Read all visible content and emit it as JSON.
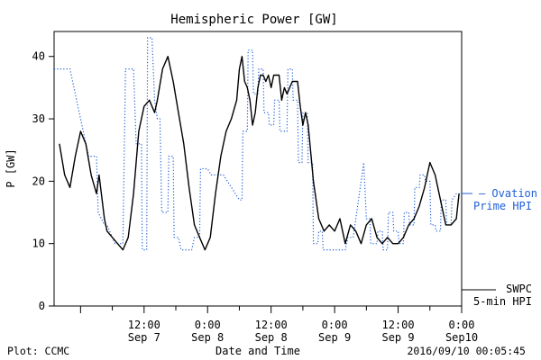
{
  "chart_data": {
    "type": "line",
    "title": "Hemispheric Power [GW]",
    "xlabel": "Date and Time",
    "ylabel": "P [GW]",
    "ylim": [
      0,
      44
    ],
    "xlim": [
      "2016-09-06 19:00",
      "2016-09-10 00:00"
    ],
    "yticks": [
      0,
      10,
      20,
      30,
      40
    ],
    "xticks": [
      {
        "x": "2016-09-07 12:00",
        "line1": "12:00",
        "line2": "Sep 7"
      },
      {
        "x": "2016-09-08 00:00",
        "line1": "0:00",
        "line2": "Sep 8"
      },
      {
        "x": "2016-09-08 12:00",
        "line1": "12:00",
        "line2": "Sep 8"
      },
      {
        "x": "2016-09-09 00:00",
        "line1": "0:00",
        "line2": "Sep 9"
      },
      {
        "x": "2016-09-09 12:00",
        "line1": "12:00",
        "line2": "Sep 9"
      },
      {
        "x": "2016-09-10 00:00",
        "line1": "0:00",
        "line2": "Sep10"
      }
    ],
    "grid": false,
    "series": [
      {
        "name": "Ovation Prime HPI",
        "legend_lines": [
          "— Ovation",
          "Prime HPI"
        ],
        "color": "#1f5fd6",
        "style": "dotted",
        "points": [
          [
            "2016-09-06 19:00",
            38
          ],
          [
            "2016-09-06 22:00",
            38
          ],
          [
            "2016-09-07 01:30",
            24
          ],
          [
            "2016-09-07 03:00",
            24
          ],
          [
            "2016-09-07 03:20",
            15
          ],
          [
            "2016-09-07 04:30",
            13
          ],
          [
            "2016-09-07 05:00",
            13
          ],
          [
            "2016-09-07 06:30",
            10
          ],
          [
            "2016-09-07 08:00",
            10
          ],
          [
            "2016-09-07 08:30",
            38
          ],
          [
            "2016-09-07 10:00",
            38
          ],
          [
            "2016-09-07 10:30",
            26
          ],
          [
            "2016-09-07 11:30",
            26
          ],
          [
            "2016-09-07 11:40",
            9
          ],
          [
            "2016-09-07 12:30",
            9
          ],
          [
            "2016-09-07 12:40",
            43
          ],
          [
            "2016-09-07 13:30",
            43
          ],
          [
            "2016-09-07 14:00",
            33
          ],
          [
            "2016-09-07 14:30",
            30
          ],
          [
            "2016-09-07 15:00",
            30
          ],
          [
            "2016-09-07 15:20",
            15
          ],
          [
            "2016-09-07 16:30",
            15
          ],
          [
            "2016-09-07 16:40",
            24
          ],
          [
            "2016-09-07 17:30",
            24
          ],
          [
            "2016-09-07 17:40",
            11
          ],
          [
            "2016-09-07 18:30",
            11
          ],
          [
            "2016-09-07 19:00",
            9
          ],
          [
            "2016-09-07 21:00",
            9
          ],
          [
            "2016-09-07 21:30",
            11
          ],
          [
            "2016-09-07 22:30",
            11
          ],
          [
            "2016-09-07 22:40",
            22
          ],
          [
            "2016-09-08 00:00",
            22
          ],
          [
            "2016-09-08 00:40",
            21
          ],
          [
            "2016-09-08 03:00",
            21
          ],
          [
            "2016-09-08 06:00",
            17
          ],
          [
            "2016-09-08 06:30",
            17
          ],
          [
            "2016-09-08 06:40",
            28
          ],
          [
            "2016-09-08 07:30",
            28
          ],
          [
            "2016-09-08 07:40",
            41
          ],
          [
            "2016-09-08 08:30",
            41
          ],
          [
            "2016-09-08 08:40",
            34
          ],
          [
            "2016-09-08 09:30",
            34
          ],
          [
            "2016-09-08 09:40",
            38
          ],
          [
            "2016-09-08 10:30",
            38
          ],
          [
            "2016-09-08 10:40",
            31
          ],
          [
            "2016-09-08 11:30",
            31
          ],
          [
            "2016-09-08 11:40",
            29
          ],
          [
            "2016-09-08 12:30",
            29
          ],
          [
            "2016-09-08 12:40",
            33
          ],
          [
            "2016-09-08 13:30",
            33
          ],
          [
            "2016-09-08 13:40",
            28
          ],
          [
            "2016-09-08 15:00",
            28
          ],
          [
            "2016-09-08 15:10",
            38
          ],
          [
            "2016-09-08 16:00",
            38
          ],
          [
            "2016-09-08 16:10",
            33
          ],
          [
            "2016-09-08 17:00",
            33
          ],
          [
            "2016-09-08 17:10",
            23
          ],
          [
            "2016-09-08 17:50",
            23
          ],
          [
            "2016-09-08 18:00",
            31
          ],
          [
            "2016-09-08 18:50",
            31
          ],
          [
            "2016-09-08 19:00",
            23
          ],
          [
            "2016-09-08 19:50",
            23
          ],
          [
            "2016-09-08 20:00",
            10
          ],
          [
            "2016-09-08 20:50",
            10
          ],
          [
            "2016-09-08 21:00",
            12
          ],
          [
            "2016-09-08 21:40",
            12
          ],
          [
            "2016-09-08 21:50",
            9
          ],
          [
            "2016-09-09 02:00",
            9
          ],
          [
            "2016-09-09 02:30",
            11
          ],
          [
            "2016-09-09 03:30",
            11
          ],
          [
            "2016-09-09 05:00",
            20
          ],
          [
            "2016-09-09 05:30",
            23
          ],
          [
            "2016-09-09 06:00",
            14
          ],
          [
            "2016-09-09 06:40",
            14
          ],
          [
            "2016-09-09 06:50",
            10
          ],
          [
            "2016-09-09 08:00",
            10
          ],
          [
            "2016-09-09 08:10",
            12
          ],
          [
            "2016-09-09 09:00",
            12
          ],
          [
            "2016-09-09 09:10",
            9
          ],
          [
            "2016-09-09 10:00",
            9
          ],
          [
            "2016-09-09 10:10",
            15
          ],
          [
            "2016-09-09 11:00",
            15
          ],
          [
            "2016-09-09 11:10",
            12
          ],
          [
            "2016-09-09 12:00",
            12
          ],
          [
            "2016-09-09 12:10",
            10
          ],
          [
            "2016-09-09 13:00",
            10
          ],
          [
            "2016-09-09 13:10",
            15
          ],
          [
            "2016-09-09 14:00",
            15
          ],
          [
            "2016-09-09 14:10",
            13
          ],
          [
            "2016-09-09 15:00",
            13
          ],
          [
            "2016-09-09 15:10",
            19
          ],
          [
            "2016-09-09 16:00",
            19
          ],
          [
            "2016-09-09 16:10",
            21
          ],
          [
            "2016-09-09 17:00",
            21
          ],
          [
            "2016-09-09 17:10",
            20
          ],
          [
            "2016-09-09 18:00",
            20
          ],
          [
            "2016-09-09 18:10",
            13
          ],
          [
            "2016-09-09 19:00",
            13
          ],
          [
            "2016-09-09 19:10",
            12
          ],
          [
            "2016-09-09 20:00",
            12
          ],
          [
            "2016-09-09 20:10",
            17
          ],
          [
            "2016-09-09 21:00",
            17
          ],
          [
            "2016-09-09 21:10",
            13
          ],
          [
            "2016-09-09 22:00",
            13
          ],
          [
            "2016-09-09 22:10",
            17
          ],
          [
            "2016-09-09 23:00",
            18
          ],
          [
            "2016-09-10 00:00",
            18
          ]
        ]
      },
      {
        "name": "SWPC 5-min HPI",
        "legend_lines": [
          "SWPC",
          "5-min HPI"
        ],
        "color": "#000000",
        "style": "solid",
        "points": [
          [
            "2016-09-06 20:00",
            26
          ],
          [
            "2016-09-06 21:00",
            21
          ],
          [
            "2016-09-06 22:00",
            19
          ],
          [
            "2016-09-06 23:00",
            24
          ],
          [
            "2016-09-07 00:00",
            28
          ],
          [
            "2016-09-07 01:00",
            26
          ],
          [
            "2016-09-07 02:00",
            21
          ],
          [
            "2016-09-07 03:00",
            18
          ],
          [
            "2016-09-07 03:30",
            21
          ],
          [
            "2016-09-07 04:30",
            14
          ],
          [
            "2016-09-07 05:00",
            12
          ],
          [
            "2016-09-07 06:00",
            11
          ],
          [
            "2016-09-07 07:00",
            10
          ],
          [
            "2016-09-07 08:00",
            9
          ],
          [
            "2016-09-07 09:00",
            11
          ],
          [
            "2016-09-07 10:00",
            18
          ],
          [
            "2016-09-07 11:00",
            28
          ],
          [
            "2016-09-07 12:00",
            32
          ],
          [
            "2016-09-07 13:00",
            33
          ],
          [
            "2016-09-07 14:00",
            31
          ],
          [
            "2016-09-07 14:30",
            33
          ],
          [
            "2016-09-07 15:30",
            38
          ],
          [
            "2016-09-07 16:30",
            40
          ],
          [
            "2016-09-07 17:30",
            36
          ],
          [
            "2016-09-07 18:30",
            31
          ],
          [
            "2016-09-07 19:30",
            26
          ],
          [
            "2016-09-07 20:30",
            19
          ],
          [
            "2016-09-07 21:30",
            13
          ],
          [
            "2016-09-07 22:30",
            11
          ],
          [
            "2016-09-07 23:30",
            9
          ],
          [
            "2016-09-08 00:30",
            11
          ],
          [
            "2016-09-08 01:30",
            18
          ],
          [
            "2016-09-08 02:30",
            24
          ],
          [
            "2016-09-08 03:30",
            28
          ],
          [
            "2016-09-08 04:30",
            30
          ],
          [
            "2016-09-08 05:30",
            33
          ],
          [
            "2016-09-08 06:00",
            38
          ],
          [
            "2016-09-08 06:30",
            40
          ],
          [
            "2016-09-08 07:00",
            36
          ],
          [
            "2016-09-08 07:30",
            35
          ],
          [
            "2016-09-08 08:00",
            33
          ],
          [
            "2016-09-08 08:30",
            29
          ],
          [
            "2016-09-08 09:00",
            31
          ],
          [
            "2016-09-08 09:30",
            35
          ],
          [
            "2016-09-08 10:00",
            37
          ],
          [
            "2016-09-08 10:30",
            37
          ],
          [
            "2016-09-08 11:00",
            36
          ],
          [
            "2016-09-08 11:30",
            37
          ],
          [
            "2016-09-08 12:00",
            35
          ],
          [
            "2016-09-08 12:30",
            37
          ],
          [
            "2016-09-08 13:30",
            37
          ],
          [
            "2016-09-08 14:00",
            33
          ],
          [
            "2016-09-08 14:30",
            35
          ],
          [
            "2016-09-08 15:00",
            34
          ],
          [
            "2016-09-08 16:00",
            36
          ],
          [
            "2016-09-08 17:00",
            36
          ],
          [
            "2016-09-08 17:30",
            32
          ],
          [
            "2016-09-08 18:00",
            29
          ],
          [
            "2016-09-08 18:30",
            31
          ],
          [
            "2016-09-08 19:00",
            29
          ],
          [
            "2016-09-08 20:00",
            20
          ],
          [
            "2016-09-08 21:00",
            14
          ],
          [
            "2016-09-08 22:00",
            12
          ],
          [
            "2016-09-08 23:00",
            13
          ],
          [
            "2016-09-09 00:00",
            12
          ],
          [
            "2016-09-09 01:00",
            14
          ],
          [
            "2016-09-09 02:00",
            10
          ],
          [
            "2016-09-09 03:00",
            13
          ],
          [
            "2016-09-09 04:00",
            12
          ],
          [
            "2016-09-09 05:00",
            10
          ],
          [
            "2016-09-09 06:00",
            13
          ],
          [
            "2016-09-09 07:00",
            14
          ],
          [
            "2016-09-09 08:00",
            11
          ],
          [
            "2016-09-09 09:00",
            10
          ],
          [
            "2016-09-09 10:00",
            11
          ],
          [
            "2016-09-09 11:00",
            10
          ],
          [
            "2016-09-09 12:00",
            10
          ],
          [
            "2016-09-09 13:00",
            11
          ],
          [
            "2016-09-09 14:00",
            13
          ],
          [
            "2016-09-09 15:00",
            14
          ],
          [
            "2016-09-09 16:00",
            16
          ],
          [
            "2016-09-09 17:00",
            19
          ],
          [
            "2016-09-09 18:00",
            23
          ],
          [
            "2016-09-09 19:00",
            21
          ],
          [
            "2016-09-09 20:00",
            17
          ],
          [
            "2016-09-09 21:00",
            13
          ],
          [
            "2016-09-09 22:00",
            13
          ],
          [
            "2016-09-09 23:00",
            14
          ],
          [
            "2016-09-09 23:30",
            18
          ]
        ]
      }
    ]
  },
  "footer": {
    "left": "Plot: CCMC",
    "right": "2016/09/10 00:05:45"
  }
}
